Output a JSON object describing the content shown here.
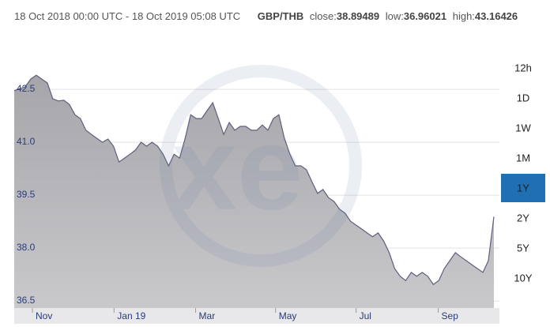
{
  "chart_data": {
    "type": "area",
    "title": "GBP/THB",
    "date_range": "18 Oct 2018 00:00 UTC - 18 Oct 2019 05:08 UTC",
    "stats": [
      {
        "label": "close:",
        "value": 38.89489
      },
      {
        "label": "low:",
        "value": 36.96021
      },
      {
        "label": "high:",
        "value": 43.16426
      }
    ],
    "color": "#5d5f7e",
    "values": [
      42.46,
      42.52,
      42.57,
      42.79,
      42.9,
      42.79,
      42.68,
      42.23,
      42.17,
      42.19,
      42.07,
      41.78,
      41.67,
      41.34,
      41.22,
      41.11,
      41.0,
      41.09,
      40.89,
      40.44,
      40.55,
      40.66,
      40.78,
      41.0,
      40.89,
      41.0,
      40.89,
      40.66,
      40.33,
      40.66,
      40.55,
      41.11,
      41.78,
      41.67,
      41.67,
      41.9,
      42.12,
      41.67,
      41.22,
      41.56,
      41.34,
      41.45,
      41.45,
      41.34,
      41.34,
      41.49,
      41.34,
      41.67,
      41.78,
      41.11,
      40.66,
      40.33,
      40.33,
      40.22,
      39.88,
      39.55,
      39.66,
      39.43,
      39.32,
      39.1,
      38.99,
      38.76,
      38.65,
      38.54,
      38.43,
      38.32,
      38.43,
      38.2,
      37.87,
      37.42,
      37.2,
      37.08,
      37.31,
      37.2,
      37.31,
      37.2,
      36.97,
      37.08,
      37.42,
      37.64,
      37.87,
      37.75,
      37.64,
      37.53,
      37.42,
      37.31,
      37.64,
      38.89
    ],
    "xlim": [
      0,
      88
    ],
    "xticks": [
      {
        "value": 3.3,
        "label": "Nov"
      },
      {
        "value": 18.1,
        "label": "Jan 19"
      },
      {
        "value": 32.9,
        "label": "Mar"
      },
      {
        "value": 47.4,
        "label": "May"
      },
      {
        "value": 62,
        "label": "Jul"
      },
      {
        "value": 76.9,
        "label": "Sep"
      }
    ],
    "ylim": [
      36.3,
      43.8
    ],
    "yticks": [
      36.5,
      {
        "value": 38,
        "label": "38.0"
      },
      39.5,
      {
        "value": 41,
        "label": "41.0"
      },
      42.5
    ],
    "grid": true,
    "buttons": [
      "12h",
      "1D",
      "1W",
      "1M",
      "1Y",
      "2Y",
      "5Y",
      "10Y"
    ],
    "selected_button": "1Y",
    "selected_color": "#1f6fb2"
  }
}
